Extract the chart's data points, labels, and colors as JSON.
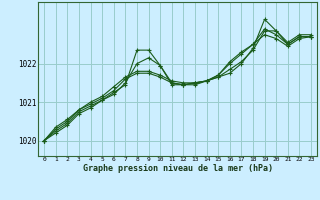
{
  "xlabel": "Graphe pression niveau de la mer (hPa)",
  "bg_color": "#cceeff",
  "grid_color": "#99cccc",
  "line_color": "#1a5c1a",
  "x_ticks": [
    0,
    1,
    2,
    3,
    4,
    5,
    6,
    7,
    8,
    9,
    10,
    11,
    12,
    13,
    14,
    15,
    16,
    17,
    18,
    19,
    20,
    21,
    22,
    23
  ],
  "ylim": [
    1019.6,
    1023.6
  ],
  "yticks": [
    1020,
    1021,
    1022
  ],
  "series": [
    [
      1020.0,
      1020.2,
      1020.4,
      1020.7,
      1020.85,
      1021.05,
      1021.25,
      1021.45,
      1022.35,
      1022.35,
      1021.95,
      1021.45,
      1021.45,
      1021.45,
      1021.55,
      1021.65,
      1021.75,
      1022.0,
      1022.4,
      1023.15,
      1022.85,
      1022.55,
      1022.75,
      1022.75
    ],
    [
      1020.0,
      1020.25,
      1020.45,
      1020.75,
      1020.9,
      1021.05,
      1021.2,
      1021.5,
      1022.0,
      1022.15,
      1021.95,
      1021.5,
      1021.45,
      1021.5,
      1021.55,
      1021.65,
      1021.85,
      1022.05,
      1022.35,
      1022.85,
      1022.85,
      1022.5,
      1022.7,
      1022.7
    ],
    [
      1020.0,
      1020.3,
      1020.5,
      1020.8,
      1020.95,
      1021.1,
      1021.3,
      1021.6,
      1021.75,
      1021.75,
      1021.65,
      1021.5,
      1021.45,
      1021.5,
      1021.55,
      1021.7,
      1022.0,
      1022.25,
      1022.5,
      1022.9,
      1022.75,
      1022.5,
      1022.7,
      1022.7
    ],
    [
      1020.0,
      1020.35,
      1020.55,
      1020.8,
      1021.0,
      1021.15,
      1021.4,
      1021.65,
      1021.8,
      1021.8,
      1021.7,
      1021.55,
      1021.5,
      1021.5,
      1021.55,
      1021.7,
      1022.05,
      1022.3,
      1022.5,
      1022.75,
      1022.65,
      1022.45,
      1022.65,
      1022.7
    ]
  ]
}
